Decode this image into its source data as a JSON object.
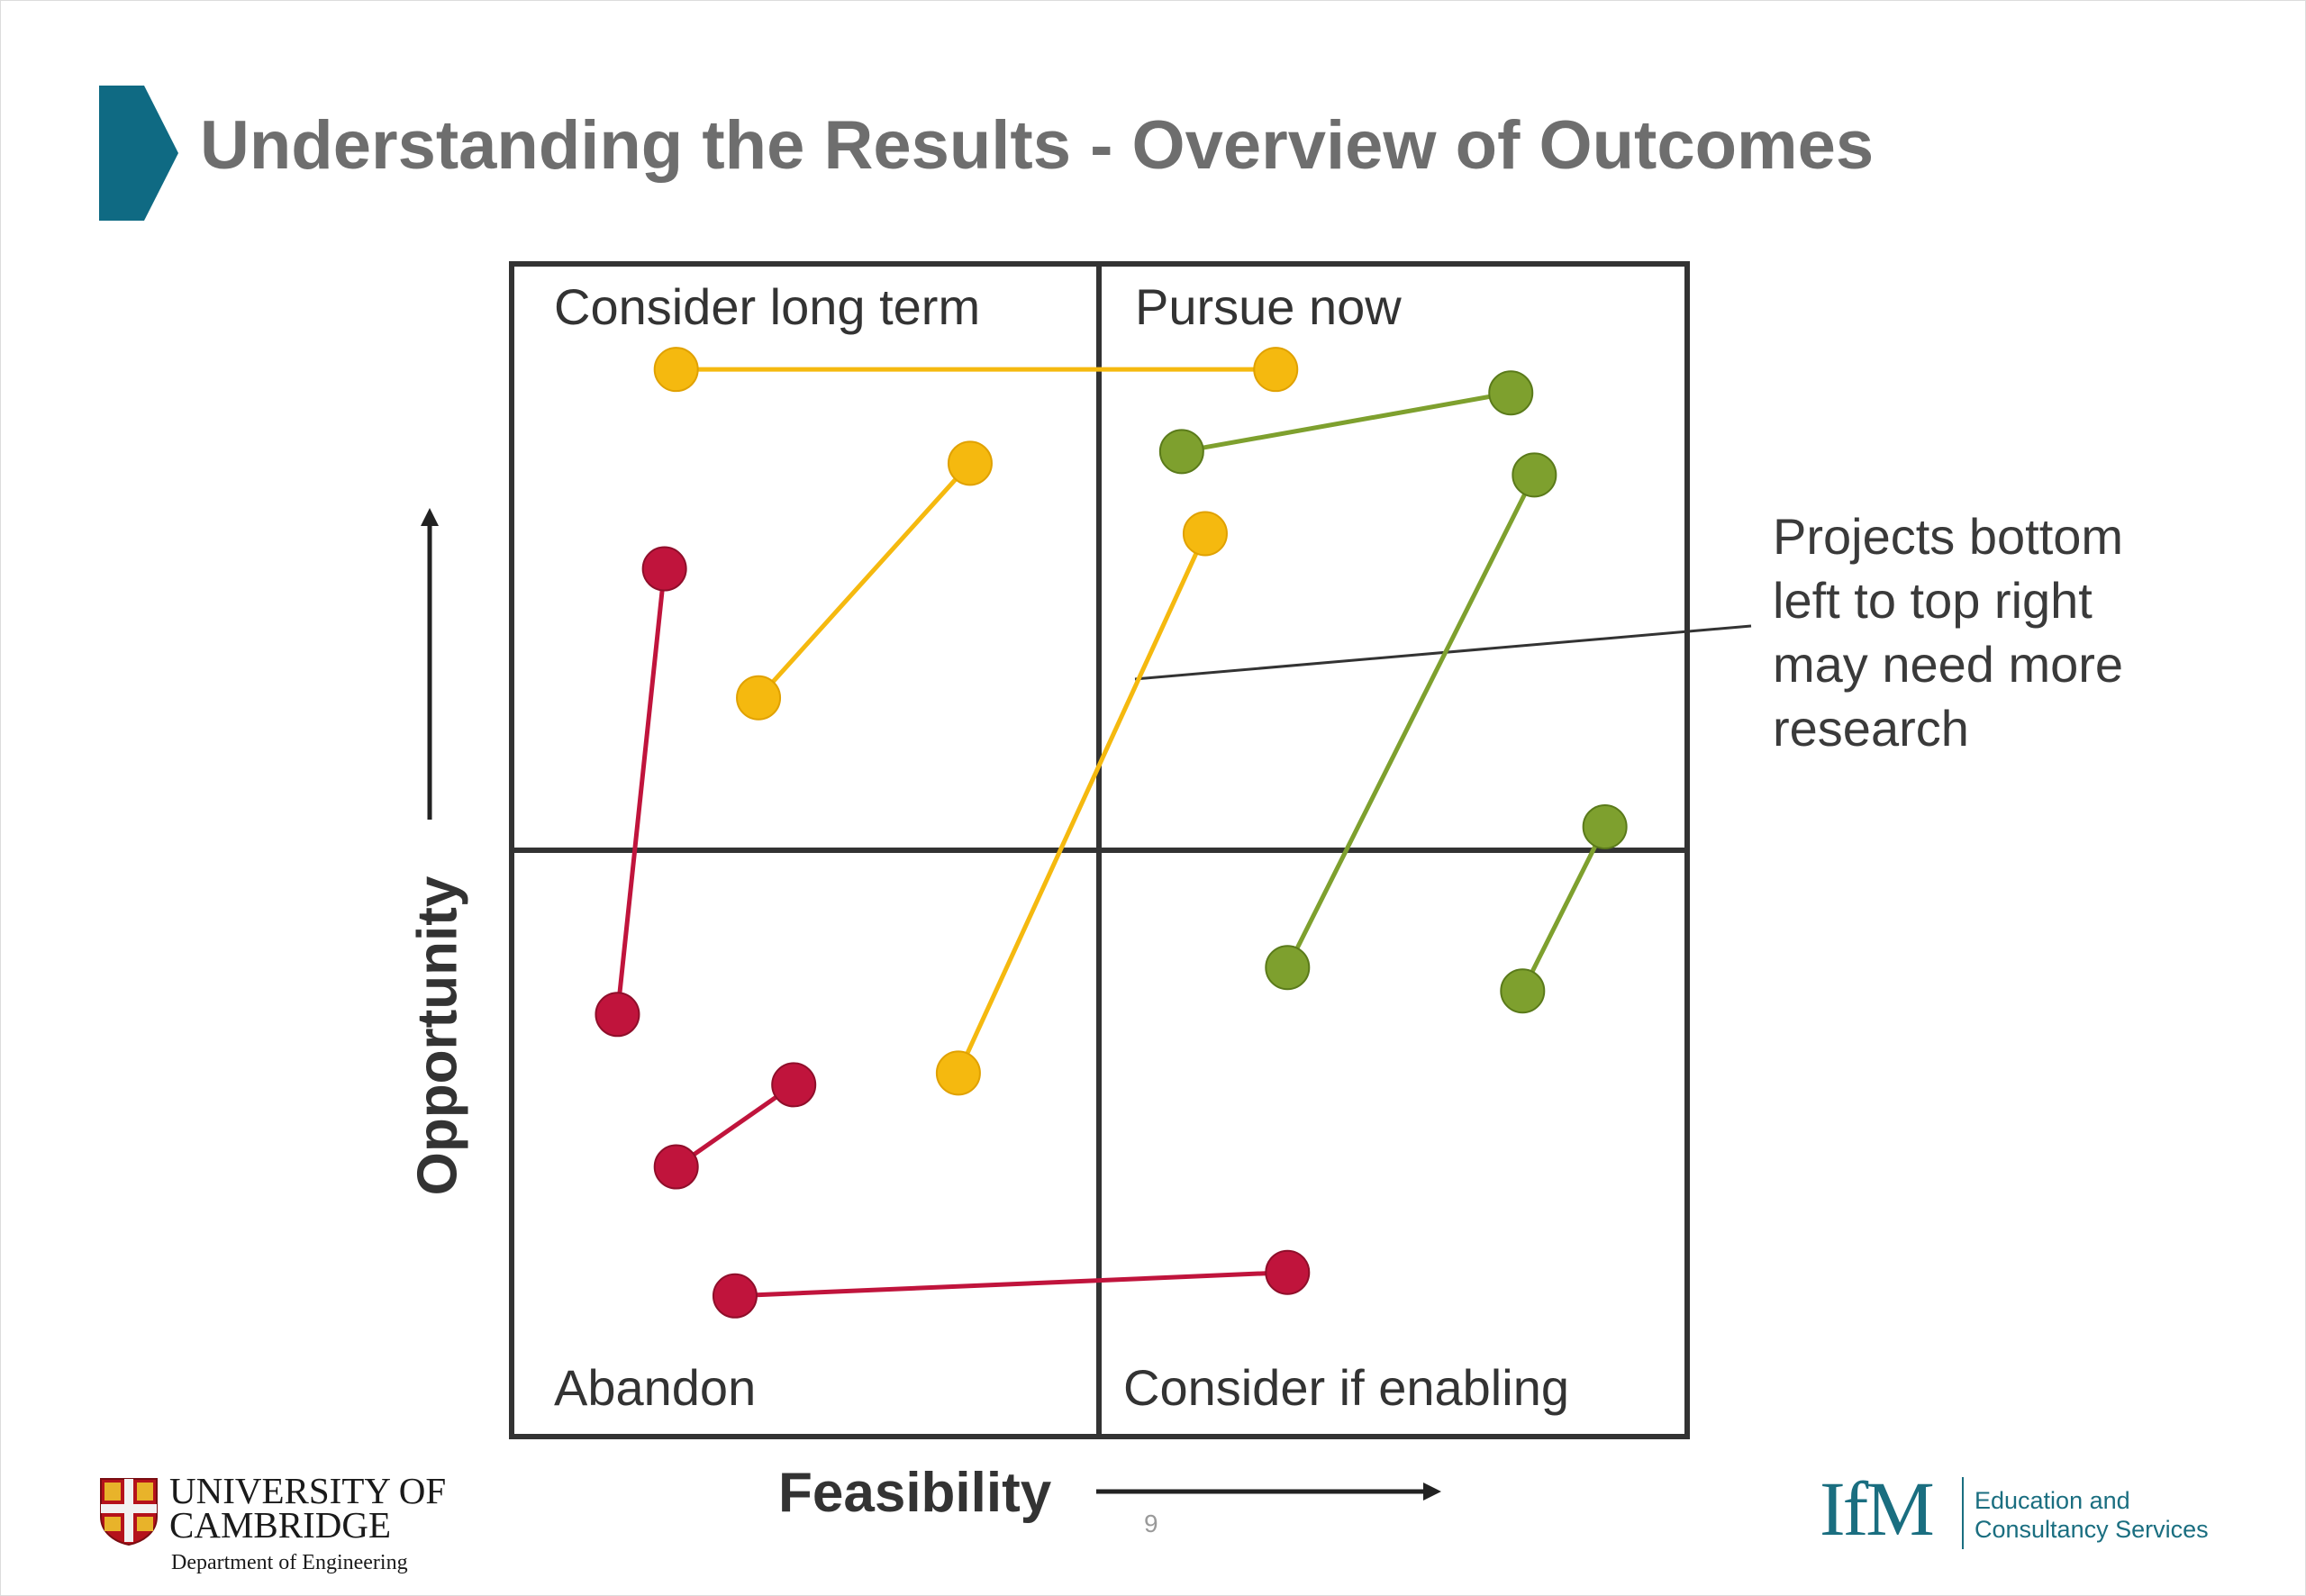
{
  "slide": {
    "title": "Understanding the Results - Overview of Outcomes",
    "page_number": "9",
    "accent_color": "#0f6a83"
  },
  "matrix": {
    "x_axis_label": "Feasibility",
    "y_axis_label": "Opportunity",
    "quadrants": {
      "top_left": "Consider long term",
      "top_right": "Pursue now",
      "bottom_left": "Abandon",
      "bottom_right": "Consider if enabling"
    },
    "callout": "Projects bottom left to top right may need more research"
  },
  "chart_data": {
    "type": "scatter",
    "x_range": [
      0,
      100
    ],
    "y_range": [
      0,
      100
    ],
    "colors": {
      "red": "#c0143c",
      "yellow": "#f5b90f",
      "green": "#7ea02e"
    },
    "segments": [
      {
        "color": "yellow",
        "points": [
          [
            14,
            91
          ],
          [
            65,
            91
          ]
        ]
      },
      {
        "color": "yellow",
        "points": [
          [
            21,
            63
          ],
          [
            39,
            83
          ]
        ]
      },
      {
        "color": "yellow",
        "points": [
          [
            38,
            31
          ],
          [
            59,
            77
          ]
        ]
      },
      {
        "color": "red",
        "points": [
          [
            13,
            74
          ],
          [
            9,
            36
          ]
        ]
      },
      {
        "color": "red",
        "points": [
          [
            14,
            23
          ],
          [
            24,
            30
          ]
        ]
      },
      {
        "color": "red",
        "points": [
          [
            19,
            12
          ],
          [
            66,
            14
          ]
        ]
      },
      {
        "color": "green",
        "points": [
          [
            57,
            84
          ],
          [
            85,
            89
          ]
        ]
      },
      {
        "color": "green",
        "points": [
          [
            66,
            40
          ],
          [
            87,
            82
          ]
        ]
      },
      {
        "color": "green",
        "points": [
          [
            86,
            38
          ],
          [
            93,
            52
          ]
        ]
      }
    ]
  },
  "logos": {
    "university_name": "UNIVERSITY OF CAMBRIDGE",
    "department": "Department of Engineering",
    "ifm_mark": "IfM",
    "ifm_text": "Education and Consultancy Services"
  }
}
